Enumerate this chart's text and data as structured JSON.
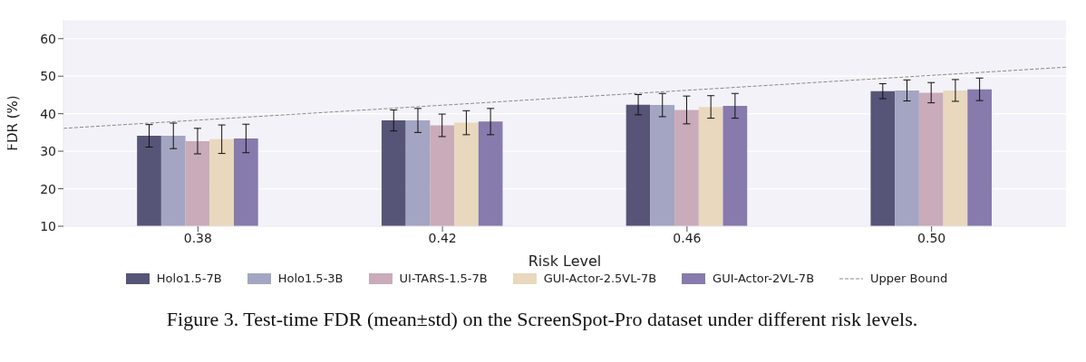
{
  "chart_data": {
    "type": "bar",
    "xlabel": "Risk Level",
    "ylabel": "FDR (%)",
    "x": [
      0.38,
      0.42,
      0.46,
      0.5
    ],
    "xlim": [
      0.358,
      0.522
    ],
    "xticks": [
      {
        "value": 0.38,
        "label": "0.38"
      },
      {
        "value": 0.42,
        "label": "0.42"
      },
      {
        "value": 0.46,
        "label": "0.46"
      },
      {
        "value": 0.5,
        "label": "0.50"
      }
    ],
    "ylim": [
      10,
      65
    ],
    "yticks": [
      10,
      20,
      30,
      40,
      50,
      60
    ],
    "grid": "y",
    "legend": "bottom",
    "series": [
      {
        "name": "Holo1.5-7B",
        "color": "#565577",
        "values": [
          34.1,
          38.2,
          42.4,
          46.0
        ],
        "errors": [
          3.0,
          2.8,
          2.7,
          2.0
        ]
      },
      {
        "name": "Holo1.5-3B",
        "color": "#a3a5c3",
        "values": [
          34.1,
          38.2,
          42.3,
          46.2
        ],
        "errors": [
          3.4,
          3.2,
          3.1,
          2.8
        ]
      },
      {
        "name": "UI-TARS-1.5-7B",
        "color": "#c9abb9",
        "values": [
          32.7,
          36.9,
          41.0,
          45.6
        ],
        "errors": [
          3.4,
          3.0,
          3.7,
          2.7
        ]
      },
      {
        "name": "GUI-Actor-2.5VL-7B",
        "color": "#e9d8bd",
        "values": [
          33.2,
          37.6,
          41.8,
          46.2
        ],
        "errors": [
          3.8,
          3.2,
          3.0,
          2.9
        ]
      },
      {
        "name": "GUI-Actor-2VL-7B",
        "color": "#877aac",
        "values": [
          33.4,
          37.9,
          42.1,
          46.5
        ],
        "errors": [
          3.8,
          3.5,
          3.3,
          3.0
        ]
      },
      {
        "name": "Upper Bound",
        "type": "line",
        "color": "#8a8a8a",
        "line_style": "dashed",
        "marker": "none",
        "x": [
          0.358,
          0.522
        ],
        "values": [
          36.1,
          52.4
        ]
      }
    ],
    "annotations": [
      "Figure 3. Test-time FDR (mean±std) on the ScreenSpot-Pro dataset under different risk levels."
    ]
  }
}
